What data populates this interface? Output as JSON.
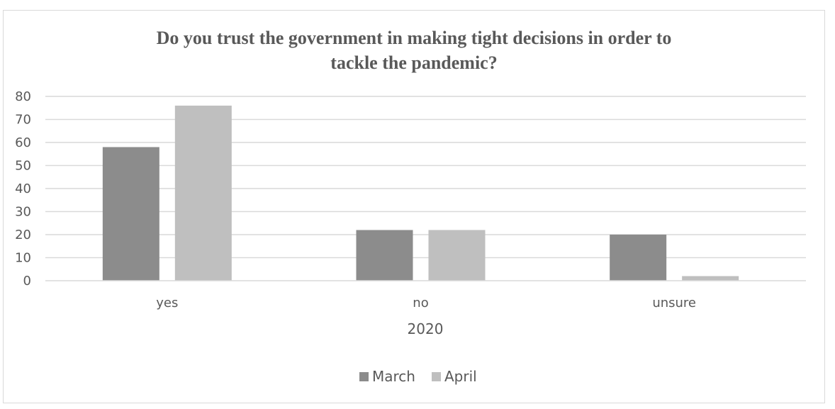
{
  "chart_data": {
    "type": "bar",
    "title_lines": [
      "Do you trust the government in making tight decisions in order to",
      "tackle the pandemic?"
    ],
    "categories": [
      "yes",
      "no",
      "unsure"
    ],
    "xlabel": "2020",
    "ylabel": "",
    "ylim": [
      0,
      80
    ],
    "yticks": [
      0,
      10,
      20,
      30,
      40,
      50,
      60,
      70,
      80
    ],
    "grid": true,
    "legend_position": "bottom",
    "series": [
      {
        "name": "March",
        "values": [
          58,
          22,
          20
        ],
        "color": "#8c8c8c"
      },
      {
        "name": "April",
        "values": [
          76,
          22,
          2
        ],
        "color": "#bfbfbf"
      }
    ]
  }
}
